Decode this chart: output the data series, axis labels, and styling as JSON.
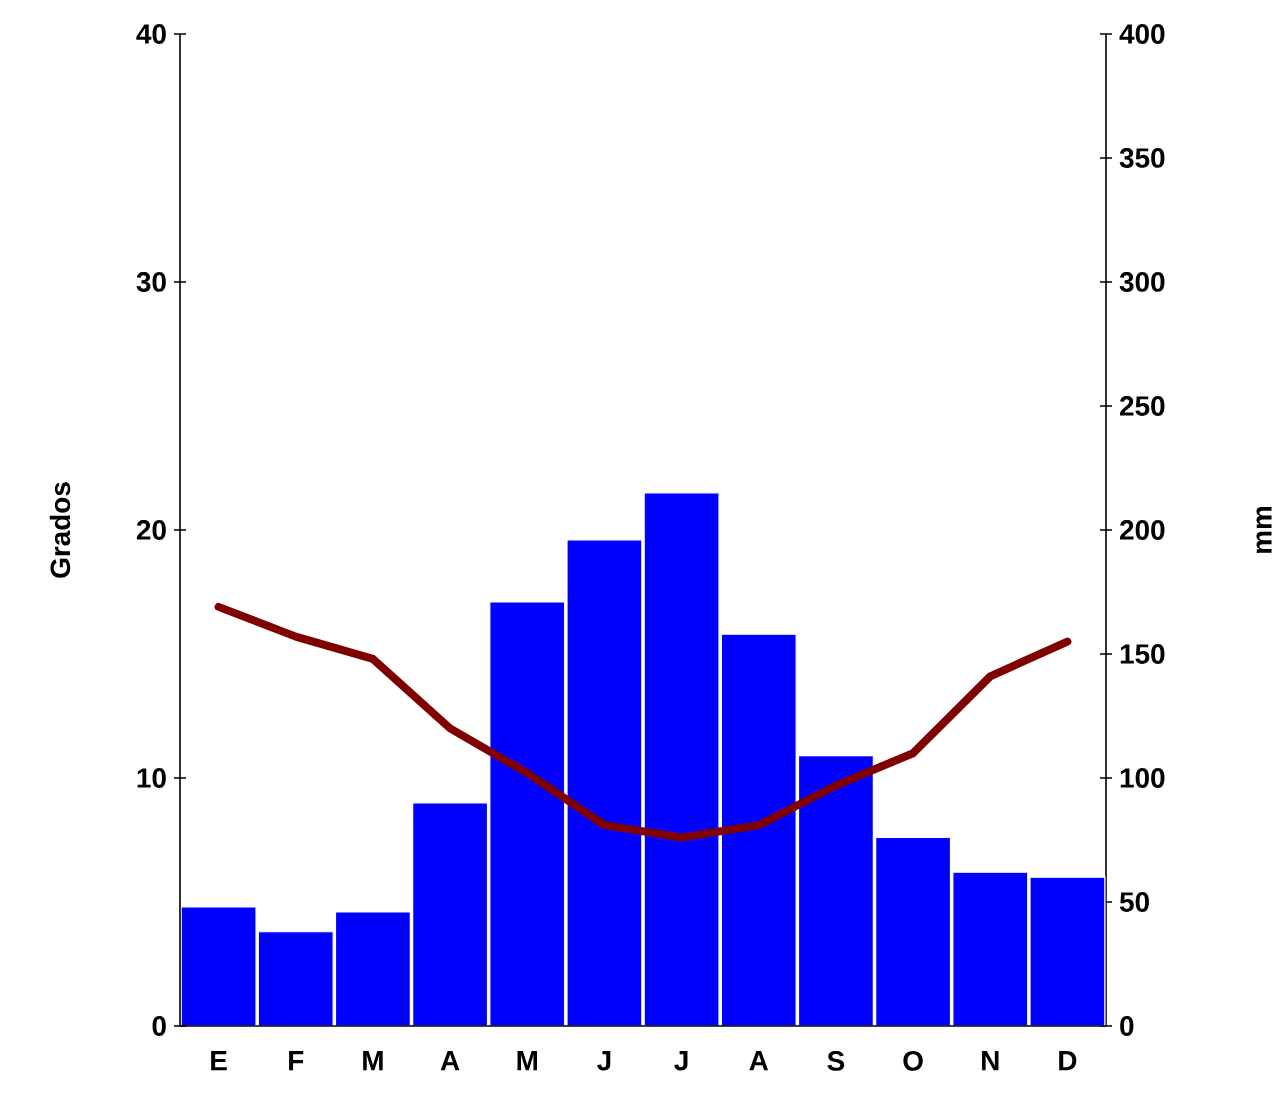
{
  "chart_data": {
    "type": "bar",
    "ylabel": "Grados",
    "y2label": "mm",
    "categories": [
      "E",
      "F",
      "M",
      "A",
      "M",
      "J",
      "J",
      "A",
      "S",
      "O",
      "N",
      "D"
    ],
    "series": [
      {
        "axis": "y2",
        "color": "#0000ff",
        "values": [
          48,
          38,
          46,
          90,
          171,
          196,
          215,
          158,
          109,
          76,
          62,
          60
        ]
      },
      {
        "type": "line",
        "axis": "y",
        "color": "#800000",
        "values": [
          16.9,
          15.7,
          14.8,
          12.0,
          10.2,
          8.1,
          7.6,
          8.1,
          9.7,
          11.0,
          14.1,
          15.5
        ]
      }
    ],
    "ylim": [
      0,
      40
    ],
    "yticks": [
      0,
      10,
      20,
      30,
      40
    ],
    "y2lim": [
      0,
      400
    ],
    "y2ticks": [
      0,
      50,
      100,
      150,
      200,
      250,
      300,
      350,
      400
    ],
    "grid": false
  }
}
